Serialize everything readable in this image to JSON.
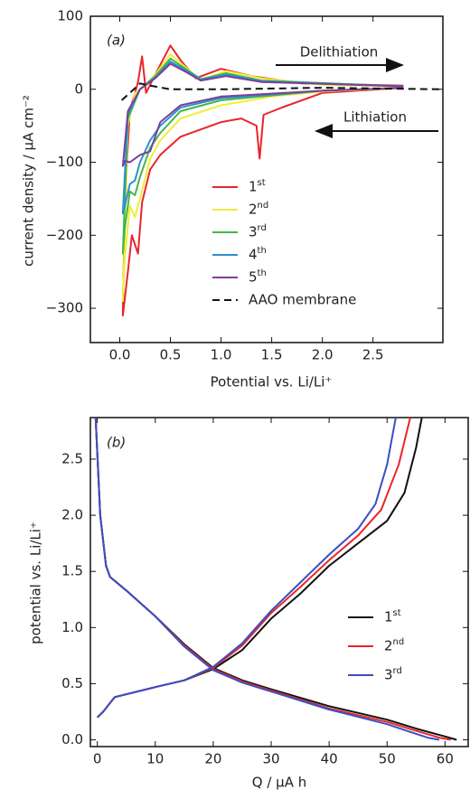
{
  "chart_data": [
    {
      "type": "line",
      "annotations": [
        "(a)",
        "Delithiation",
        "Lithiation"
      ],
      "xlabel": "Potential vs. Li/Li⁺",
      "ylabel": "current density / µA cm⁻²",
      "xlim": [
        -0.29,
        3.19
      ],
      "ylim": [
        -347,
        100
      ],
      "xticks": [
        {
          "value": 0,
          "label": "0.0"
        },
        0.5,
        {
          "value": 1,
          "label": "1.0"
        },
        1.5,
        {
          "value": 2,
          "label": "2.0"
        },
        2.5
      ],
      "yticks": [
        {
          "value": -300,
          "label": "−300"
        },
        {
          "value": -200,
          "label": "−200"
        },
        {
          "value": -100,
          "label": "−100"
        },
        0,
        100
      ],
      "legend": "lower center",
      "series": [
        {
          "name": "1st",
          "color": "#e8262b",
          "x": [
            2.8,
            2.0,
            1.6,
            1.42,
            1.38,
            1.35,
            1.2,
            1.0,
            0.6,
            0.4,
            0.3,
            0.22,
            0.18,
            0.12,
            0.08,
            0.03,
            0.05,
            0.1,
            0.18,
            0.22,
            0.26,
            0.35,
            0.5,
            0.6,
            0.75,
            1.0,
            1.3,
            1.8,
            2.8
          ],
          "values": [
            2,
            -5,
            -25,
            -35,
            -95,
            -50,
            -40,
            -45,
            -65,
            -90,
            -110,
            -155,
            -225,
            -200,
            -250,
            -310,
            -150,
            -30,
            10,
            45,
            -5,
            20,
            60,
            40,
            15,
            28,
            18,
            8,
            5
          ]
        },
        {
          "name": "2nd",
          "color": "#eeee3a",
          "x": [
            2.8,
            2.0,
            1.5,
            1.0,
            0.6,
            0.4,
            0.3,
            0.2,
            0.15,
            0.1,
            0.05,
            0.03,
            0.08,
            0.15,
            0.25,
            0.35,
            0.5,
            0.65,
            0.8,
            1.05,
            1.4,
            2.0,
            2.8
          ],
          "values": [
            2,
            -3,
            -10,
            -22,
            -40,
            -70,
            -95,
            -150,
            -175,
            -160,
            -230,
            -290,
            -50,
            -5,
            5,
            20,
            48,
            30,
            12,
            25,
            15,
            6,
            4
          ]
        },
        {
          "name": "3rd",
          "color": "#44b649",
          "x": [
            2.8,
            2.0,
            1.0,
            0.6,
            0.4,
            0.3,
            0.2,
            0.15,
            0.1,
            0.05,
            0.03,
            0.08,
            0.2,
            0.35,
            0.5,
            0.65,
            0.8,
            1.05,
            1.4,
            2.8
          ],
          "values": [
            2,
            -2,
            -15,
            -30,
            -60,
            -80,
            -120,
            -145,
            -140,
            -190,
            -225,
            -40,
            0,
            18,
            42,
            28,
            14,
            22,
            12,
            4
          ]
        },
        {
          "name": "4th",
          "color": "#2f8fd0",
          "x": [
            2.8,
            2.0,
            1.0,
            0.6,
            0.4,
            0.3,
            0.2,
            0.15,
            0.1,
            0.05,
            0.03,
            0.08,
            0.2,
            0.35,
            0.5,
            0.65,
            0.8,
            1.05,
            1.4,
            2.8
          ],
          "values": [
            2,
            -2,
            -12,
            -25,
            -50,
            -70,
            -100,
            -125,
            -130,
            -160,
            -170,
            -35,
            0,
            16,
            38,
            26,
            13,
            20,
            11,
            4
          ]
        },
        {
          "name": "5th",
          "color": "#7d3f98",
          "x": [
            2.8,
            2.0,
            1.0,
            0.6,
            0.4,
            0.3,
            0.2,
            0.1,
            0.05,
            0.03,
            0.08,
            0.2,
            0.35,
            0.5,
            0.65,
            0.8,
            1.05,
            1.4,
            2.8
          ],
          "values": [
            2,
            -2,
            -10,
            -22,
            -45,
            -85,
            -90,
            -100,
            -98,
            -105,
            -30,
            0,
            15,
            35,
            24,
            12,
            18,
            10,
            4
          ]
        },
        {
          "name": "AAO membrane",
          "color": "#111111",
          "dash": true,
          "x": [
            0.02,
            0.1,
            0.2,
            0.3,
            0.5,
            1.0,
            2.0,
            3.19
          ],
          "values": [
            -15,
            -5,
            8,
            5,
            0,
            0,
            2,
            0
          ]
        }
      ]
    },
    {
      "type": "line",
      "annotations": [
        "(b)"
      ],
      "xlabel": "Q / µA h",
      "ylabel": "potential vs. Li/Li⁺",
      "xlim": [
        -1.2,
        64
      ],
      "ylim": [
        -0.06,
        2.87
      ],
      "xticks": [
        0,
        10,
        20,
        30,
        40,
        50,
        60
      ],
      "yticks": [
        {
          "value": 0,
          "label": "0.0"
        },
        0.5,
        {
          "value": 1,
          "label": "1.0"
        },
        1.5,
        {
          "value": 2,
          "label": "2.0"
        },
        2.5
      ],
      "legend": "right",
      "series": [
        {
          "name": "1st",
          "color": "#111111",
          "x": [
            -0.3,
            0.5,
            1.5,
            2.2,
            5,
            10,
            15,
            20,
            25,
            30,
            40,
            50,
            55,
            60,
            62,
            null,
            0,
            1,
            3,
            10,
            15,
            20,
            25,
            30,
            35,
            40,
            45,
            50,
            53,
            55,
            56
          ],
          "values": [
            2.87,
            2.0,
            1.55,
            1.45,
            1.33,
            1.1,
            0.85,
            0.64,
            0.53,
            0.45,
            0.3,
            0.18,
            0.1,
            0.03,
            0.0,
            null,
            0.2,
            0.25,
            0.38,
            0.47,
            0.53,
            0.63,
            0.8,
            1.08,
            1.3,
            1.55,
            1.75,
            1.95,
            2.2,
            2.6,
            2.87
          ]
        },
        {
          "name": "2nd",
          "color": "#e8262b",
          "x": [
            -0.3,
            0.5,
            1.5,
            2.2,
            5,
            10,
            15,
            20,
            25,
            30,
            40,
            50,
            55,
            59,
            61,
            null,
            0,
            1,
            3,
            10,
            15,
            20,
            25,
            30,
            35,
            40,
            45,
            49,
            52,
            54
          ],
          "values": [
            2.87,
            2.0,
            1.55,
            1.45,
            1.33,
            1.1,
            0.84,
            0.63,
            0.52,
            0.44,
            0.28,
            0.16,
            0.08,
            0.02,
            0.0,
            null,
            0.2,
            0.25,
            0.38,
            0.47,
            0.53,
            0.64,
            0.84,
            1.13,
            1.36,
            1.6,
            1.82,
            2.05,
            2.45,
            2.87
          ]
        },
        {
          "name": "3rd",
          "color": "#3a4fc4",
          "x": [
            -0.3,
            0.5,
            1.5,
            2.2,
            5,
            10,
            15,
            20,
            25,
            30,
            40,
            50,
            54,
            57,
            59,
            null,
            0,
            1,
            3,
            10,
            15,
            20,
            25,
            30,
            35,
            40,
            45,
            48,
            50,
            51.5
          ],
          "values": [
            2.87,
            2.0,
            1.55,
            1.45,
            1.33,
            1.1,
            0.83,
            0.62,
            0.51,
            0.43,
            0.27,
            0.14,
            0.07,
            0.02,
            0.0,
            null,
            0.2,
            0.25,
            0.38,
            0.47,
            0.53,
            0.65,
            0.86,
            1.15,
            1.4,
            1.65,
            1.88,
            2.1,
            2.45,
            2.87
          ]
        }
      ]
    }
  ]
}
